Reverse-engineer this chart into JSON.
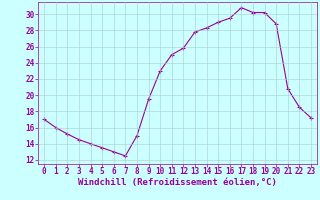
{
  "x": [
    0,
    1,
    2,
    3,
    4,
    5,
    6,
    7,
    8,
    9,
    10,
    11,
    12,
    13,
    14,
    15,
    16,
    17,
    18,
    19,
    20,
    21,
    22,
    23
  ],
  "y": [
    17.0,
    16.0,
    15.2,
    14.5,
    14.0,
    13.5,
    13.0,
    12.5,
    15.0,
    19.5,
    23.0,
    25.0,
    25.8,
    27.8,
    28.3,
    29.0,
    29.5,
    30.8,
    30.2,
    30.2,
    28.8,
    20.8,
    18.5,
    17.2
  ],
  "line_color": "#990099",
  "marker": "+",
  "marker_size": 3,
  "marker_linewidth": 0.8,
  "bg_color": "#ccffff",
  "grid_color": "#aacccc",
  "xlabel": "Windchill (Refroidissement éolien,°C)",
  "xlabel_color": "#990099",
  "xlabel_fontsize": 6.5,
  "tick_color": "#990099",
  "tick_fontsize": 5.5,
  "ylim": [
    11.5,
    31.5
  ],
  "yticks": [
    12,
    14,
    16,
    18,
    20,
    22,
    24,
    26,
    28,
    30
  ],
  "xlim": [
    -0.5,
    23.5
  ],
  "xticks": [
    0,
    1,
    2,
    3,
    4,
    5,
    6,
    7,
    8,
    9,
    10,
    11,
    12,
    13,
    14,
    15,
    16,
    17,
    18,
    19,
    20,
    21,
    22,
    23
  ]
}
